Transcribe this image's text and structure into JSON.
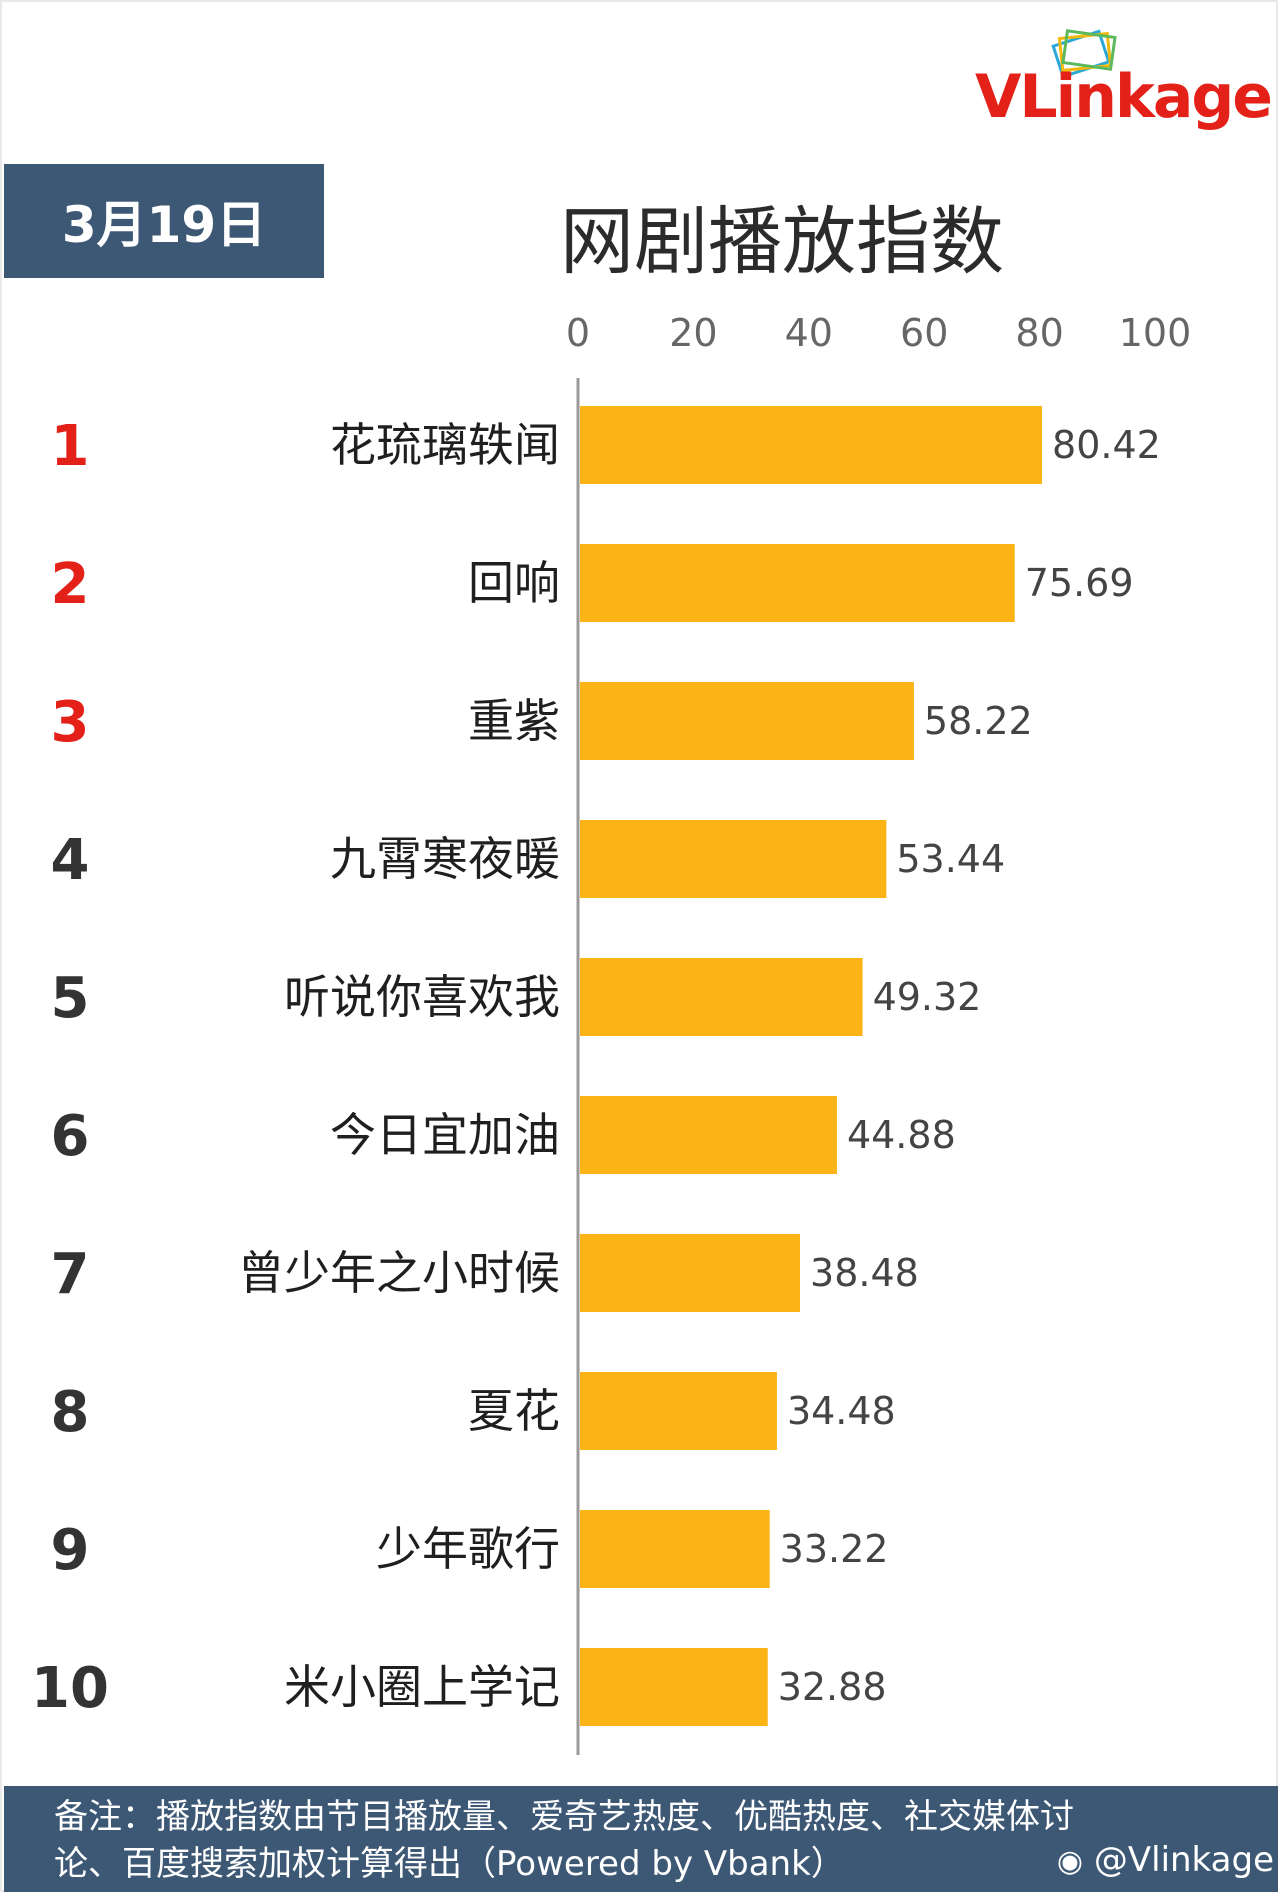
{
  "brand": {
    "logo_text": "VLinkage",
    "logo_color": "#e32119",
    "watermark": "@Vlinkage"
  },
  "header": {
    "date": "3月19日",
    "title": "网剧播放指数"
  },
  "footer": {
    "note_line1": "备注：播放指数由节目播放量、爱奇艺热度、优酷热度、社交媒体讨",
    "note_line2": "论、百度搜索加权计算得出（Powered by Vbank）"
  },
  "colors": {
    "bar": "#fbb316",
    "rank_top": "#e32119",
    "rank_other": "#333333",
    "header_bg": "#3d5875"
  },
  "chart_data": {
    "type": "bar",
    "orientation": "horizontal",
    "title": "网剧播放指数",
    "xlim": [
      0,
      100
    ],
    "x_ticks": [
      0,
      20,
      40,
      60,
      80,
      100
    ],
    "grid": false,
    "ranks": [
      "1",
      "2",
      "3",
      "4",
      "5",
      "6",
      "7",
      "8",
      "9",
      "10"
    ],
    "categories": [
      "花琉璃轶闻",
      "回响",
      "重紫",
      "九霄寒夜暖",
      "听说你喜欢我",
      "今日宜加油",
      "曾少年之小时候",
      "夏花",
      "少年歌行",
      "米小圈上学记"
    ],
    "values": [
      80.42,
      75.69,
      58.22,
      53.44,
      49.32,
      44.88,
      38.48,
      34.48,
      33.22,
      32.88
    ],
    "value_labels": [
      "80.42",
      "75.69",
      "58.22",
      "53.44",
      "49.32",
      "44.88",
      "38.48",
      "34.48",
      "33.22",
      "32.88"
    ]
  }
}
